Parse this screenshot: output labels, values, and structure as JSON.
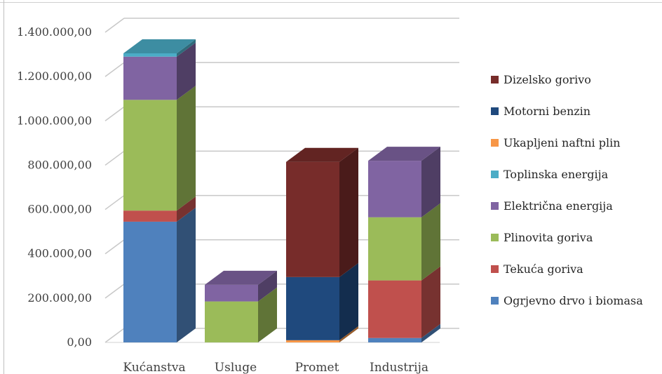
{
  "chart_data": {
    "type": "bar",
    "stacked": true,
    "three_d": true,
    "categories": [
      "Kućanstva",
      "Usluge",
      "Promet",
      "Industrija"
    ],
    "ylim": [
      0,
      1400000
    ],
    "ytick_values": [
      0,
      200000,
      400000,
      600000,
      800000,
      1000000,
      1200000,
      1400000
    ],
    "ytick_labels": [
      "0,00",
      "200.000,00",
      "400.000,00",
      "600.000,00",
      "800.000,00",
      "1.000.000,00",
      "1.200.000,00",
      "1.400.000,00"
    ],
    "grid": true,
    "legend_position": "right",
    "series": [
      {
        "name": "Ogrjevno drvo i biomasa",
        "color": "#4f81bd",
        "values": [
          545000,
          0,
          0,
          20000
        ]
      },
      {
        "name": "Tekuća goriva",
        "color": "#c0504d",
        "values": [
          50000,
          0,
          0,
          260000
        ]
      },
      {
        "name": "Plinovita goriva",
        "color": "#9bbb59",
        "values": [
          500000,
          185000,
          0,
          285000
        ]
      },
      {
        "name": "Električna energija",
        "color": "#8064a2",
        "values": [
          195000,
          75000,
          0,
          255000
        ]
      },
      {
        "name": "Toplinska energija",
        "color": "#4bacc6",
        "values": [
          15000,
          0,
          0,
          0
        ]
      },
      {
        "name": "Ukapljeni naftni plin",
        "color": "#f79646",
        "values": [
          0,
          0,
          10000,
          0
        ]
      },
      {
        "name": "Motorni benzin",
        "color": "#1f497d",
        "values": [
          0,
          0,
          285000,
          0
        ]
      },
      {
        "name": "Dizelsko gorivo",
        "color": "#772c2a",
        "values": [
          0,
          0,
          520000,
          0
        ]
      }
    ],
    "legend_order": [
      "Dizelsko gorivo",
      "Motorni benzin",
      "Ukapljeni naftni plin",
      "Toplinska energija",
      "Električna energija",
      "Plinovita goriva",
      "Tekuća goriva",
      "Ogrjevno drvo i biomasa"
    ]
  }
}
